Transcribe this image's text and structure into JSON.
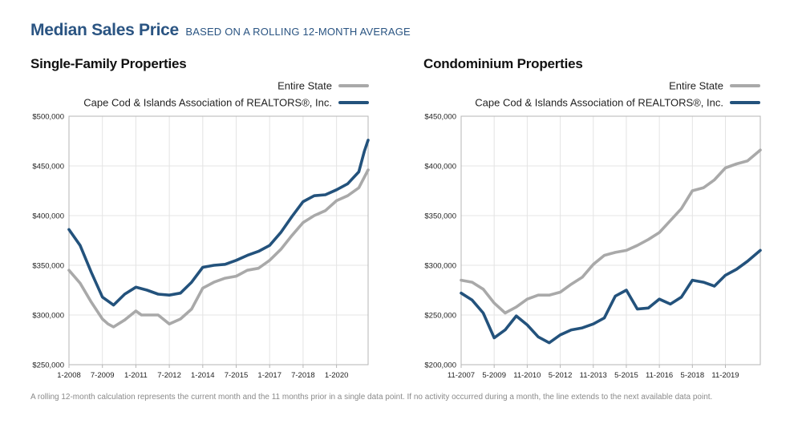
{
  "header": {
    "title": "Median Sales Price",
    "subtitle": "BASED ON A ROLLING 12-MONTH AVERAGE"
  },
  "colors": {
    "state": "#a9a9a9",
    "cape_cod": "#23527c",
    "grid": "#e4e4e4",
    "axis": "#b5b5b5",
    "title_blue": "#2a5482"
  },
  "footnote": "A rolling 12-month calculation represents the current month and the 11 months prior in a single data point. If no activity occurred during a month, the line extends to the next available data point.",
  "chart_data": [
    {
      "type": "line",
      "title": "Single-Family Properties",
      "xlabel": "",
      "ylabel": "",
      "x_ticks": [
        "1-2008",
        "7-2009",
        "1-2011",
        "7-2012",
        "1-2014",
        "7-2015",
        "1-2017",
        "7-2018",
        "1-2020"
      ],
      "x_range": [
        "1-2008",
        "6-2021"
      ],
      "ylim": [
        250000,
        500000
      ],
      "y_ticks": [
        "$250,000",
        "$300,000",
        "$350,000",
        "$400,000",
        "$450,000",
        "$500,000"
      ],
      "grid": true,
      "legend_position": "top-right",
      "series": [
        {
          "name": "Entire State",
          "color": "#a9a9a9",
          "points": [
            [
              "1-2008",
              345000
            ],
            [
              "7-2008",
              332000
            ],
            [
              "1-2009",
              313000
            ],
            [
              "7-2009",
              296000
            ],
            [
              "10-2009",
              291000
            ],
            [
              "1-2010",
              288000
            ],
            [
              "7-2010",
              295000
            ],
            [
              "1-2011",
              304000
            ],
            [
              "4-2011",
              300000
            ],
            [
              "1-2012",
              300000
            ],
            [
              "7-2012",
              291000
            ],
            [
              "1-2013",
              296000
            ],
            [
              "7-2013",
              306000
            ],
            [
              "1-2014",
              327000
            ],
            [
              "7-2014",
              333000
            ],
            [
              "1-2015",
              337000
            ],
            [
              "7-2015",
              339000
            ],
            [
              "1-2016",
              345000
            ],
            [
              "7-2016",
              347000
            ],
            [
              "1-2017",
              355000
            ],
            [
              "7-2017",
              366000
            ],
            [
              "1-2018",
              380000
            ],
            [
              "7-2018",
              393000
            ],
            [
              "1-2019",
              400000
            ],
            [
              "7-2019",
              405000
            ],
            [
              "1-2020",
              415000
            ],
            [
              "7-2020",
              420000
            ],
            [
              "1-2021",
              428000
            ],
            [
              "6-2021",
              446000
            ]
          ]
        },
        {
          "name": "Cape Cod & Islands Association of REALTORS®, Inc.",
          "color": "#23527c",
          "points": [
            [
              "1-2008",
              386000
            ],
            [
              "7-2008",
              370000
            ],
            [
              "1-2009",
              343000
            ],
            [
              "7-2009",
              318000
            ],
            [
              "1-2010",
              310000
            ],
            [
              "7-2010",
              321000
            ],
            [
              "1-2011",
              328000
            ],
            [
              "7-2011",
              325000
            ],
            [
              "1-2012",
              321000
            ],
            [
              "7-2012",
              320000
            ],
            [
              "1-2013",
              322000
            ],
            [
              "7-2013",
              333000
            ],
            [
              "1-2014",
              348000
            ],
            [
              "7-2014",
              350000
            ],
            [
              "1-2015",
              351000
            ],
            [
              "7-2015",
              355000
            ],
            [
              "1-2016",
              360000
            ],
            [
              "7-2016",
              364000
            ],
            [
              "1-2017",
              370000
            ],
            [
              "7-2017",
              383000
            ],
            [
              "1-2018",
              399000
            ],
            [
              "7-2018",
              414000
            ],
            [
              "1-2019",
              420000
            ],
            [
              "7-2019",
              421000
            ],
            [
              "1-2020",
              426000
            ],
            [
              "7-2020",
              432000
            ],
            [
              "1-2021",
              444000
            ],
            [
              "4-2021",
              465000
            ],
            [
              "6-2021",
              476000
            ]
          ]
        }
      ]
    },
    {
      "type": "line",
      "title": "Condominium Properties",
      "xlabel": "",
      "ylabel": "",
      "x_ticks": [
        "11-2007",
        "5-2009",
        "11-2010",
        "5-2012",
        "11-2013",
        "5-2015",
        "11-2016",
        "5-2018",
        "11-2019"
      ],
      "x_range": [
        "11-2007",
        "6-2021"
      ],
      "ylim": [
        200000,
        450000
      ],
      "y_ticks": [
        "$200,000",
        "$250,000",
        "$300,000",
        "$350,000",
        "$400,000",
        "$450,000"
      ],
      "grid": true,
      "legend_position": "top-right",
      "series": [
        {
          "name": "Entire State",
          "color": "#a9a9a9",
          "points": [
            [
              "11-2007",
              285000
            ],
            [
              "5-2008",
              283000
            ],
            [
              "11-2008",
              276000
            ],
            [
              "5-2009",
              262000
            ],
            [
              "11-2009",
              252000
            ],
            [
              "5-2010",
              258000
            ],
            [
              "11-2010",
              266000
            ],
            [
              "5-2011",
              270000
            ],
            [
              "11-2011",
              270000
            ],
            [
              "5-2012",
              273000
            ],
            [
              "11-2012",
              281000
            ],
            [
              "5-2013",
              288000
            ],
            [
              "11-2013",
              301000
            ],
            [
              "5-2014",
              310000
            ],
            [
              "11-2014",
              313000
            ],
            [
              "5-2015",
              315000
            ],
            [
              "11-2015",
              320000
            ],
            [
              "5-2016",
              326000
            ],
            [
              "11-2016",
              333000
            ],
            [
              "5-2017",
              345000
            ],
            [
              "11-2017",
              357000
            ],
            [
              "5-2018",
              375000
            ],
            [
              "11-2018",
              378000
            ],
            [
              "5-2019",
              386000
            ],
            [
              "11-2019",
              398000
            ],
            [
              "5-2020",
              402000
            ],
            [
              "11-2020",
              405000
            ],
            [
              "6-2021",
              416000
            ]
          ]
        },
        {
          "name": "Cape Cod & Islands Association of REALTORS®, Inc.",
          "color": "#23527c",
          "points": [
            [
              "11-2007",
              272000
            ],
            [
              "5-2008",
              265000
            ],
            [
              "11-2008",
              252000
            ],
            [
              "5-2009",
              227000
            ],
            [
              "11-2009",
              235000
            ],
            [
              "5-2010",
              249000
            ],
            [
              "11-2010",
              240000
            ],
            [
              "5-2011",
              228000
            ],
            [
              "11-2011",
              222000
            ],
            [
              "5-2012",
              230000
            ],
            [
              "11-2012",
              235000
            ],
            [
              "5-2013",
              237000
            ],
            [
              "11-2013",
              241000
            ],
            [
              "5-2014",
              247000
            ],
            [
              "11-2014",
              269000
            ],
            [
              "5-2015",
              275000
            ],
            [
              "11-2015",
              256000
            ],
            [
              "5-2016",
              257000
            ],
            [
              "11-2016",
              266000
            ],
            [
              "5-2017",
              261000
            ],
            [
              "11-2017",
              268000
            ],
            [
              "5-2018",
              285000
            ],
            [
              "11-2018",
              283000
            ],
            [
              "5-2019",
              279000
            ],
            [
              "11-2019",
              290000
            ],
            [
              "5-2020",
              296000
            ],
            [
              "11-2020",
              304000
            ],
            [
              "6-2021",
              315000
            ]
          ]
        }
      ]
    }
  ]
}
